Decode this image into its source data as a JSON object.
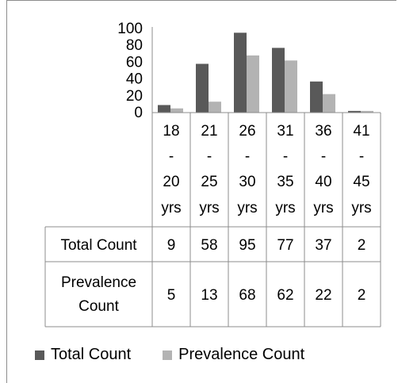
{
  "chart_data": {
    "type": "bar",
    "categories": [
      "18 - 20 yrs",
      "21 - 25 yrs",
      "26 - 30 yrs",
      "31 - 35 yrs",
      "36 - 40 yrs",
      "41 - 45 yrs"
    ],
    "category_lines": [
      [
        "18",
        "-",
        "20",
        "yrs"
      ],
      [
        "21",
        "-",
        "25",
        "yrs"
      ],
      [
        "26",
        "-",
        "30",
        "yrs"
      ],
      [
        "31",
        "-",
        "35",
        "yrs"
      ],
      [
        "36",
        "-",
        "40",
        "yrs"
      ],
      [
        "41",
        "-",
        "45",
        "yrs"
      ]
    ],
    "series": [
      {
        "name": "Total Count",
        "values": [
          9,
          58,
          95,
          77,
          37,
          2
        ],
        "color": "#595959"
      },
      {
        "name": "Prevalence Count",
        "values": [
          5,
          13,
          68,
          62,
          22,
          2
        ],
        "color": "#b3b3b3"
      }
    ],
    "series_row_labels": [
      [
        "Total Count"
      ],
      [
        "Prevalence",
        "Count"
      ]
    ],
    "yticks": [
      "0",
      "20",
      "40",
      "60",
      "80",
      "100"
    ],
    "ylim": [
      0,
      100
    ],
    "legend_position": "bottom",
    "grid": false,
    "data_table": true
  }
}
